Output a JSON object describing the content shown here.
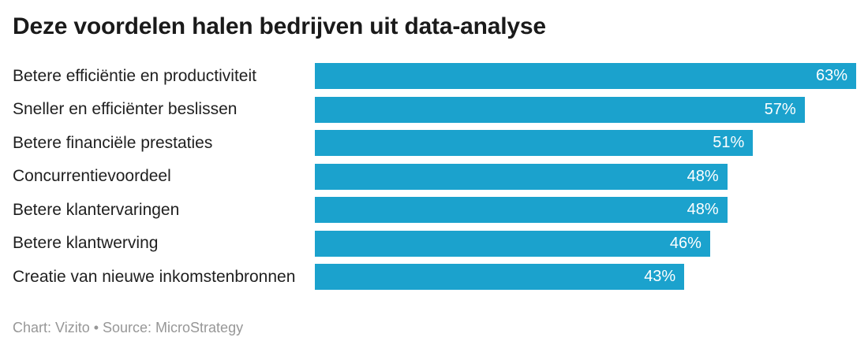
{
  "header": {
    "title": "Deze voordelen halen bedrijven uit data-analyse"
  },
  "footer": {
    "attribution": "Chart: Vizito • Source: MicroStrategy"
  },
  "colors": {
    "background": "#ffffff",
    "bar": "#1ba2cd",
    "title_text": "#1a1a1a",
    "category_text": "#1f1f1f",
    "value_text": "#ffffff",
    "attribution_text": "#979797"
  },
  "chart_data": {
    "type": "bar",
    "orientation": "horizontal",
    "title": "Deze voordelen halen bedrijven uit data-analyse",
    "xlabel": "",
    "ylabel": "",
    "grid": false,
    "legend": false,
    "value_suffix": "%",
    "max_value": 63,
    "categories": [
      "Betere efficiëntie en productiviteit",
      "Sneller en efficiënter beslissen",
      "Betere financiële prestaties",
      "Concurrentievoordeel",
      "Betere klantervaringen",
      "Betere klantwerving",
      "Creatie van nieuwe inkomstenbronnen"
    ],
    "values": [
      63,
      57,
      51,
      48,
      48,
      46,
      43
    ],
    "value_labels": [
      "63%",
      "57%",
      "51%",
      "48%",
      "48%",
      "46%",
      "43%"
    ]
  }
}
